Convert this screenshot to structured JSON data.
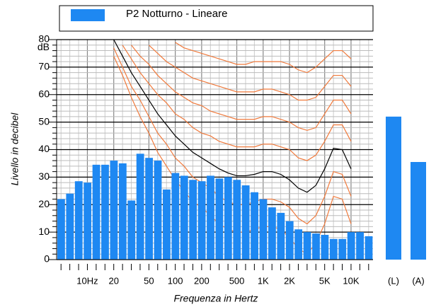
{
  "chart_data": {
    "type": "bar",
    "legend_label": "P2 Notturno - Lineare",
    "ylabel": "Livello in decibel",
    "xlabel": "Frequenza in Hertz",
    "yunit": "dB",
    "color": "#1e88f2",
    "categories": [
      null,
      null,
      null,
      "10Hz",
      null,
      null,
      "20",
      null,
      null,
      null,
      "50",
      null,
      null,
      "100",
      null,
      null,
      "200",
      null,
      null,
      null,
      "500",
      null,
      null,
      "1K",
      null,
      null,
      "2K",
      null,
      null,
      null,
      "5K",
      null,
      null,
      "10K",
      null,
      null
    ],
    "values": [
      22,
      24,
      28.5,
      28,
      34.5,
      34.5,
      36,
      35,
      21.5,
      38.5,
      37,
      36,
      25.5,
      31.5,
      30.5,
      29,
      28.5,
      30.5,
      29.5,
      30,
      29,
      27,
      24.5,
      22,
      19,
      17,
      14,
      11,
      10,
      9.5,
      9,
      7.5,
      7.5,
      10,
      10,
      8.5
    ],
    "summary": {
      "categories": [
        "(L)",
        "(A)"
      ],
      "values": [
        52,
        35.5
      ]
    },
    "contours": [
      {
        "color": "#f07a3c",
        "values": [
          null,
          null,
          null,
          null,
          null,
          null,
          74,
          67,
          59,
          52,
          46,
          39,
          34,
          29,
          25,
          21,
          19,
          16,
          13,
          11,
          10,
          10,
          11,
          12,
          12,
          11,
          8,
          4,
          2,
          6,
          13,
          23,
          22,
          13,
          null,
          null
        ]
      },
      {
        "color": "#f07a3c",
        "values": [
          null,
          null,
          null,
          null,
          null,
          null,
          77,
          70,
          63,
          58,
          52,
          46,
          42,
          37,
          34,
          30,
          28,
          26,
          23,
          21,
          20,
          20,
          21,
          22,
          22,
          21,
          19,
          15,
          13,
          16,
          23,
          32,
          31,
          23,
          null,
          null
        ]
      },
      {
        "color": "#000000",
        "values": [
          null,
          null,
          null,
          null,
          null,
          null,
          80,
          74,
          68,
          63,
          58,
          53,
          49,
          45,
          42,
          39,
          37,
          35,
          33,
          31.5,
          30.5,
          30.5,
          31,
          32,
          32,
          31,
          29,
          26,
          24.5,
          27,
          33,
          40.5,
          40,
          33,
          null,
          null
        ]
      },
      {
        "color": "#f07a3c",
        "values": [
          null,
          null,
          null,
          null,
          null,
          null,
          null,
          78,
          73,
          68,
          64,
          60,
          57,
          53,
          51,
          48,
          46,
          45,
          43,
          42,
          41,
          41,
          41,
          42,
          42,
          41,
          40,
          37,
          36,
          38,
          43,
          49,
          49,
          43,
          null,
          null
        ]
      },
      {
        "color": "#f07a3c",
        "values": [
          null,
          null,
          null,
          null,
          null,
          null,
          null,
          null,
          78,
          74,
          71,
          67,
          64,
          61,
          59,
          57,
          56,
          54,
          53,
          52,
          51,
          51,
          51,
          52,
          52,
          51,
          50,
          48,
          47,
          48,
          53,
          58,
          58,
          53,
          null,
          null
        ]
      },
      {
        "color": "#f07a3c",
        "values": [
          null,
          null,
          null,
          null,
          null,
          null,
          null,
          null,
          null,
          null,
          78,
          75,
          72,
          70,
          68,
          66,
          65,
          64,
          63,
          62,
          61,
          61,
          61,
          62,
          62,
          61,
          60,
          58,
          58,
          59,
          63,
          67,
          67,
          63,
          null,
          null
        ]
      },
      {
        "color": "#f07a3c",
        "values": [
          null,
          null,
          null,
          null,
          null,
          null,
          null,
          null,
          null,
          null,
          null,
          null,
          null,
          79,
          77,
          76,
          75,
          74,
          73,
          72,
          71,
          71,
          72,
          72,
          72,
          72,
          71,
          69,
          68,
          70,
          73,
          76,
          76,
          73,
          null,
          null
        ]
      }
    ],
    "ylim": [
      0,
      80
    ],
    "yticks": [
      0,
      10,
      20,
      30,
      40,
      50,
      60,
      70,
      80
    ],
    "grid": true
  }
}
